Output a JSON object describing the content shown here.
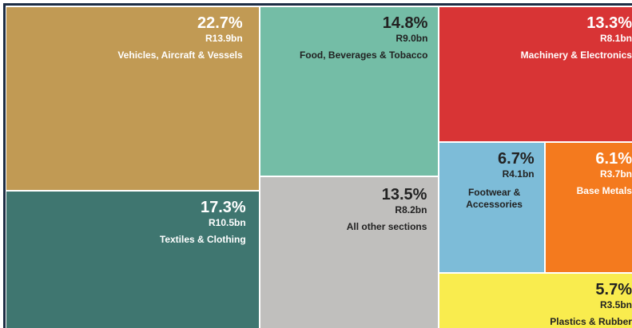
{
  "chart_data": {
    "type": "treemap",
    "categories": [
      "Vehicles, Aircraft & Vessels",
      "Textiles & Clothing",
      "Food, Beverages & Tobacco",
      "All other sections",
      "Machinery & Electronics",
      "Footwear & Accessories",
      "Base Metals",
      "Plastics & Rubber"
    ],
    "values": [
      22.7,
      17.3,
      14.8,
      13.5,
      13.3,
      6.7,
      6.1,
      5.7
    ],
    "value_labels": [
      "22.7%",
      "17.3%",
      "14.8%",
      "13.5%",
      "13.3%",
      "6.7%",
      "6.1%",
      "5.7%"
    ],
    "amounts": [
      13.9,
      10.5,
      9.0,
      8.2,
      8.1,
      4.1,
      3.7,
      3.5
    ],
    "amount_labels": [
      "R13.9bn",
      "R10.5bn",
      "R9.0bn",
      "R8.2bn",
      "R8.1bn",
      "R4.1bn",
      "R3.7bn",
      "R3.5bn"
    ],
    "colors": [
      "#c19a54",
      "#3f7670",
      "#74bda6",
      "#c0bfbd",
      "#d83435",
      "#7dbcd8",
      "#f47a1e",
      "#f9ec4e"
    ]
  }
}
